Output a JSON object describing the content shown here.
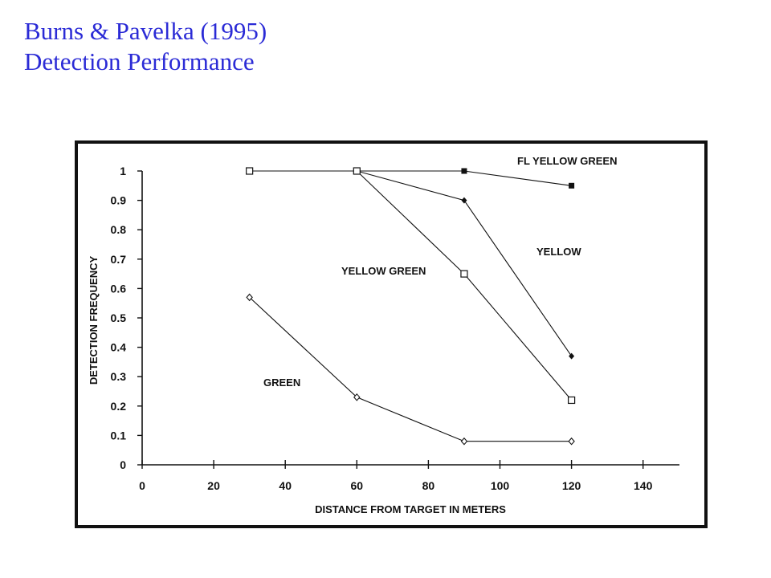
{
  "slide": {
    "title_line1": "Burns & Pavelka (1995)",
    "title_line2": "Detection Performance"
  },
  "colors": {
    "title": "#2b2bd6",
    "ink": "#111111"
  },
  "chart_data": {
    "type": "line",
    "xlabel": "DISTANCE FROM TARGET IN METERS",
    "ylabel": "DETECTION FREQUENCY",
    "xlim": [
      0,
      140
    ],
    "ylim": [
      0,
      1
    ],
    "xticks": [
      0,
      20,
      40,
      60,
      80,
      100,
      120,
      140
    ],
    "yticks": [
      0,
      0.1,
      0.2,
      0.3,
      0.4,
      0.5,
      0.6,
      0.7,
      0.8,
      0.9,
      1
    ],
    "ytick_labels": [
      "0",
      "0.1",
      "0.2",
      "0.3",
      "0.4",
      "0.5",
      "0.6",
      "0.7",
      "0.8",
      "0.9",
      "1"
    ],
    "grid": false,
    "legend": "inline labels",
    "series": [
      {
        "name": "FL YELLOW GREEN",
        "marker": "filled-square",
        "x": [
          30,
          60,
          90,
          120
        ],
        "y": [
          1.0,
          1.0,
          1.0,
          0.95
        ]
      },
      {
        "name": "YELLOW",
        "marker": "filled-diamond",
        "x": [
          30,
          60,
          90,
          120
        ],
        "y": [
          1.0,
          1.0,
          0.9,
          0.37
        ]
      },
      {
        "name": "YELLOW GREEN",
        "marker": "open-square",
        "x": [
          30,
          60,
          90,
          120
        ],
        "y": [
          1.0,
          1.0,
          0.65,
          0.22
        ]
      },
      {
        "name": "GREEN",
        "marker": "open-diamond",
        "x": [
          30,
          60,
          90,
          120
        ],
        "y": [
          0.57,
          0.23,
          0.08,
          0.08
        ]
      }
    ]
  }
}
